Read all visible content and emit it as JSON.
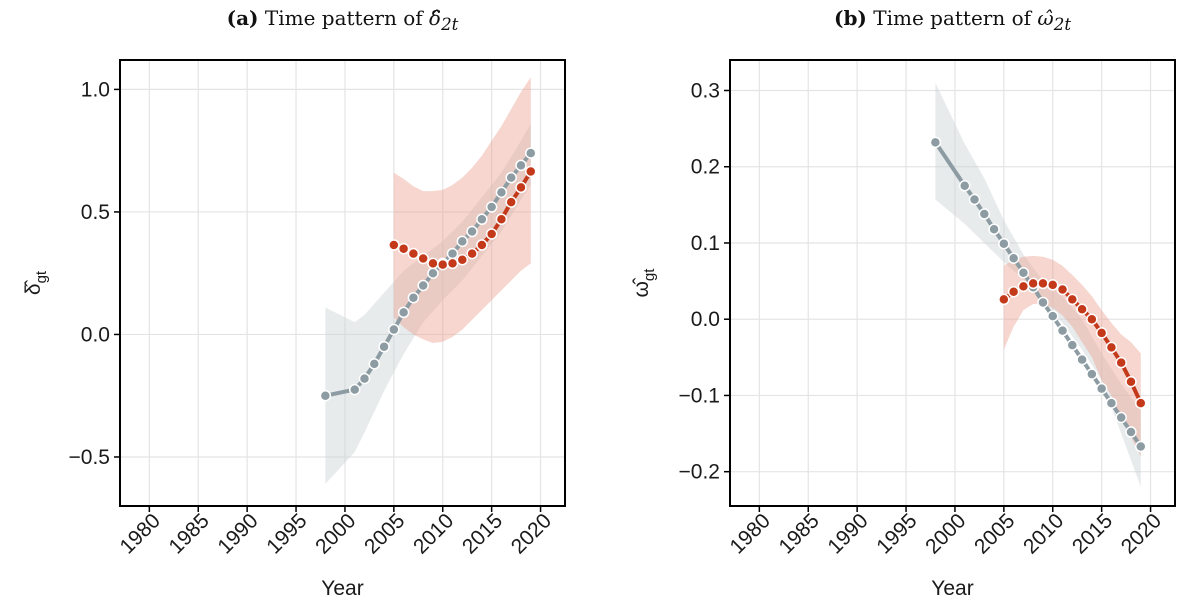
{
  "captions": [
    {
      "tag": "(a)",
      "text": "Time pattern of ",
      "sym": "δ̂",
      "sub": "2t"
    },
    {
      "tag": "(b)",
      "text": "Time pattern of ",
      "sym": "ω̂",
      "sub": "2t"
    }
  ],
  "colors": {
    "gray_series": "#8d9ca3",
    "red_series": "#c4391a",
    "gray_band": "#c9d2d5",
    "red_band": "#eba594",
    "grid": "#e4e4e4"
  },
  "chart_data": [
    {
      "type": "line",
      "title": "",
      "xlabel": "Year",
      "ylabel": "δ̂",
      "ylabel_sub": "gt",
      "xlim": [
        1977,
        2022.5
      ],
      "ylim": [
        -0.7,
        1.12
      ],
      "xticks": [
        1980,
        1985,
        1990,
        1995,
        2000,
        2005,
        2010,
        2015,
        2020
      ],
      "yticks": [
        -0.5,
        0.0,
        0.5,
        1.0
      ],
      "ytick_labels": [
        "−0.5",
        "0.0",
        "0.5",
        "1.0"
      ],
      "grid": true,
      "series": [
        {
          "color": "gray",
          "x": [
            1998,
            2001,
            2002,
            2003,
            2004,
            2005,
            2006,
            2007,
            2008,
            2009,
            2010,
            2011,
            2012,
            2013,
            2014,
            2015,
            2016,
            2017,
            2018,
            2019
          ],
          "y": [
            -0.25,
            -0.225,
            -0.18,
            -0.12,
            -0.05,
            0.02,
            0.09,
            0.15,
            0.2,
            0.25,
            0.29,
            0.33,
            0.38,
            0.42,
            0.47,
            0.52,
            0.58,
            0.64,
            0.69,
            0.74
          ],
          "band_x": [
            1998,
            2001,
            2002,
            2004,
            2006,
            2008,
            2010,
            2012,
            2014,
            2016,
            2018,
            2019
          ],
          "band_lower": [
            -0.61,
            -0.48,
            -0.4,
            -0.23,
            -0.08,
            0.05,
            0.14,
            0.22,
            0.32,
            0.42,
            0.55,
            0.61
          ],
          "band_upper": [
            0.11,
            0.05,
            0.08,
            0.17,
            0.26,
            0.32,
            0.38,
            0.46,
            0.56,
            0.66,
            0.79,
            0.86
          ]
        },
        {
          "color": "red",
          "x": [
            2005,
            2006,
            2007,
            2008,
            2009,
            2010,
            2011,
            2012,
            2013,
            2014,
            2015,
            2016,
            2017,
            2018,
            2019
          ],
          "y": [
            0.365,
            0.35,
            0.33,
            0.31,
            0.29,
            0.285,
            0.29,
            0.305,
            0.33,
            0.365,
            0.41,
            0.47,
            0.54,
            0.6,
            0.665
          ],
          "band_x": [
            2005,
            2006,
            2007,
            2008,
            2009,
            2010,
            2011,
            2012,
            2013,
            2014,
            2015,
            2016,
            2017,
            2018,
            2019
          ],
          "band_lower": [
            0.07,
            0.03,
            0.0,
            -0.02,
            -0.035,
            -0.03,
            -0.01,
            0.02,
            0.06,
            0.1,
            0.14,
            0.18,
            0.22,
            0.26,
            0.29
          ],
          "band_upper": [
            0.66,
            0.635,
            0.605,
            0.585,
            0.585,
            0.59,
            0.61,
            0.64,
            0.68,
            0.73,
            0.79,
            0.85,
            0.92,
            0.99,
            1.05
          ]
        }
      ]
    },
    {
      "type": "line",
      "title": "",
      "xlabel": "Year",
      "ylabel": "ω̂",
      "ylabel_sub": "gt",
      "xlim": [
        1977,
        2022.5
      ],
      "ylim": [
        -0.245,
        0.34
      ],
      "xticks": [
        1980,
        1985,
        1990,
        1995,
        2000,
        2005,
        2010,
        2015,
        2020
      ],
      "yticks": [
        -0.2,
        -0.1,
        0.0,
        0.1,
        0.2,
        0.3
      ],
      "ytick_labels": [
        "−0.2",
        "−0.1",
        "0.0",
        "0.1",
        "0.2",
        "0.3"
      ],
      "grid": true,
      "series": [
        {
          "color": "gray",
          "x": [
            1998,
            2001,
            2002,
            2003,
            2004,
            2005,
            2006,
            2007,
            2008,
            2009,
            2010,
            2011,
            2012,
            2013,
            2014,
            2015,
            2016,
            2017,
            2018,
            2019
          ],
          "y": [
            0.232,
            0.175,
            0.157,
            0.138,
            0.118,
            0.099,
            0.08,
            0.061,
            0.042,
            0.022,
            0.004,
            -0.015,
            -0.034,
            -0.053,
            -0.072,
            -0.091,
            -0.11,
            -0.129,
            -0.148,
            -0.167
          ],
          "band_x": [
            1998,
            2001,
            2003,
            2005,
            2007,
            2009,
            2011,
            2013,
            2015,
            2017,
            2019
          ],
          "band_lower": [
            0.157,
            0.125,
            0.1,
            0.075,
            0.052,
            0.025,
            -0.005,
            -0.04,
            -0.08,
            -0.15,
            -0.22
          ],
          "band_upper": [
            0.31,
            0.23,
            0.185,
            0.13,
            0.085,
            0.05,
            0.03,
            0.0,
            -0.045,
            -0.085,
            -0.12
          ]
        },
        {
          "color": "red",
          "x": [
            2005,
            2006,
            2007,
            2008,
            2009,
            2010,
            2011,
            2012,
            2013,
            2014,
            2015,
            2016,
            2017,
            2018,
            2019
          ],
          "y": [
            0.026,
            0.036,
            0.043,
            0.047,
            0.047,
            0.045,
            0.039,
            0.026,
            0.013,
            0.0,
            -0.018,
            -0.037,
            -0.057,
            -0.082,
            -0.11
          ],
          "band_x": [
            2005,
            2006,
            2007,
            2008,
            2009,
            2010,
            2011,
            2012,
            2013,
            2014,
            2015,
            2016,
            2017,
            2018,
            2019
          ],
          "band_lower": [
            -0.04,
            -0.01,
            0.012,
            0.02,
            0.02,
            0.015,
            0.005,
            -0.01,
            -0.03,
            -0.05,
            -0.08,
            -0.1,
            -0.13,
            -0.155,
            -0.18
          ],
          "band_upper": [
            0.07,
            0.078,
            0.082,
            0.083,
            0.082,
            0.078,
            0.07,
            0.058,
            0.045,
            0.03,
            0.012,
            -0.005,
            -0.02,
            -0.03,
            -0.045
          ]
        }
      ]
    }
  ]
}
